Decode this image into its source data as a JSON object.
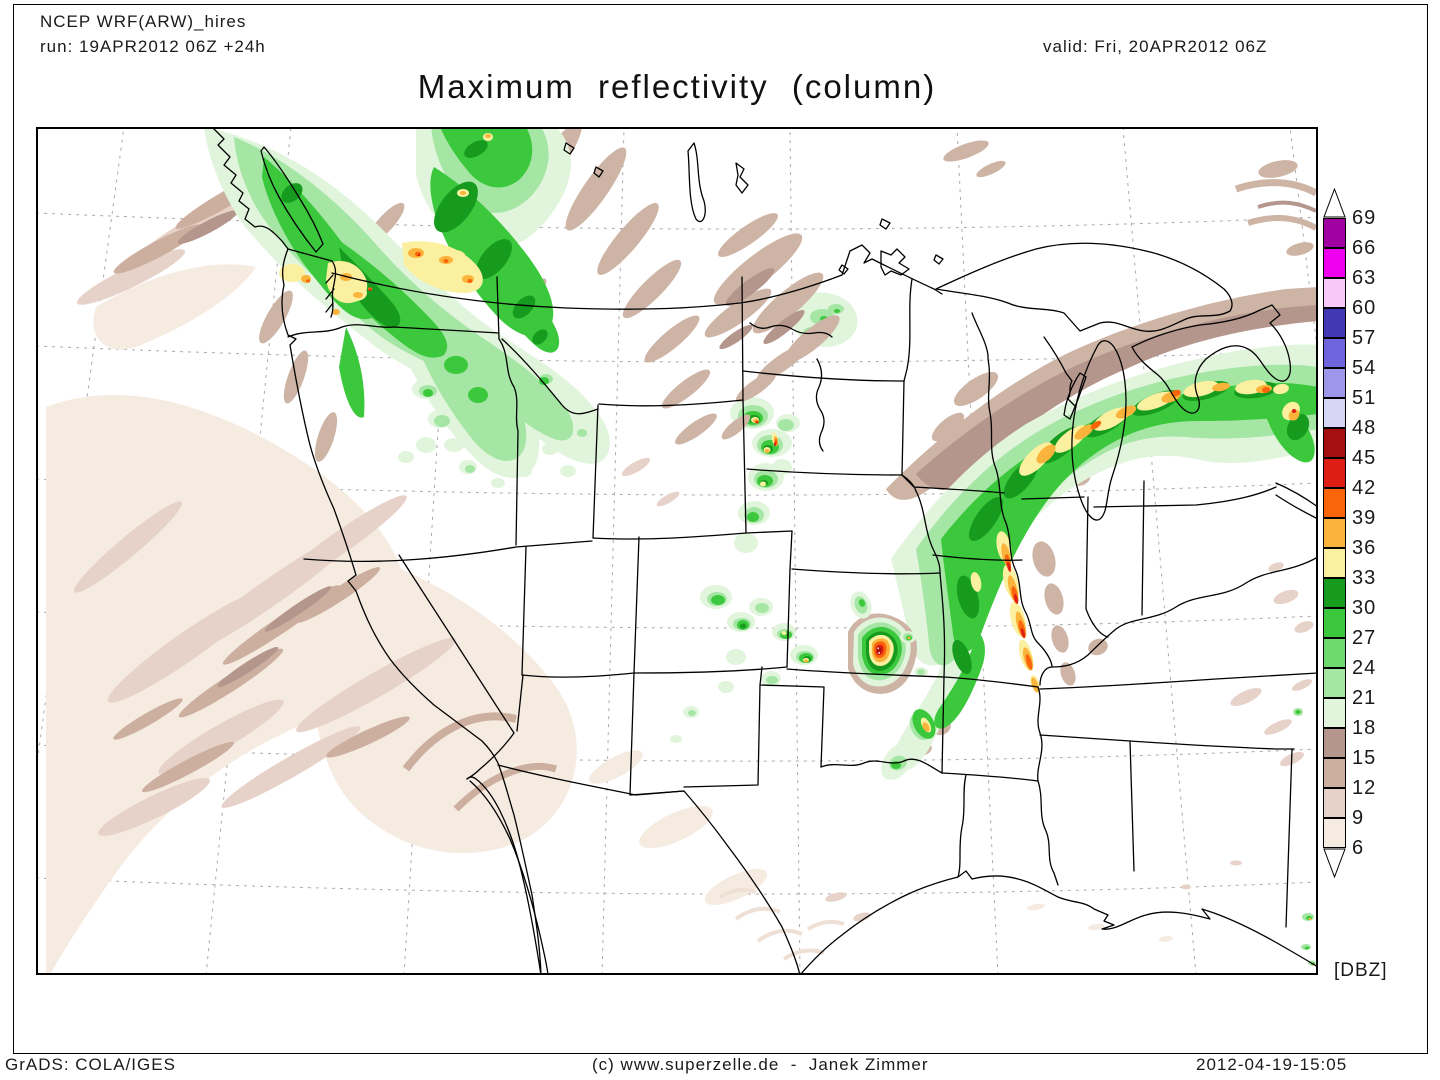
{
  "header": {
    "model": "NCEP WRF(ARW)_hires",
    "run": "run: 19APR2012 06Z +24h",
    "valid": "valid: Fri, 20APR2012 06Z"
  },
  "title": "Maximum reflectivity (column)",
  "footer": {
    "left": "GrADS: COLA/IGES",
    "center": "(c) www.superzelle.de  -  Janek Zimmer",
    "right": "2012-04-19-15:05"
  },
  "colorbar": {
    "units": "[DBZ]",
    "labels": [
      69,
      66,
      63,
      60,
      57,
      54,
      51,
      48,
      45,
      42,
      39,
      36,
      33,
      30,
      27,
      24,
      21,
      18,
      15,
      12,
      9,
      6
    ],
    "colors": [
      "#A000A0",
      "#EE00EE",
      "#F8C8F8",
      "#4238B4",
      "#6E64DC",
      "#9E96E8",
      "#D7D7F5",
      "#A50F0F",
      "#DC1E14",
      "#FA640A",
      "#FAB43C",
      "#FAF0A0",
      "#169B1E",
      "#3CC83C",
      "#6ED96E",
      "#A5E6A5",
      "#E1F5DC",
      "#B4968C",
      "#CDAFA0",
      "#E6D2C8",
      "#F5EBE1"
    ]
  },
  "chart_data": {
    "type": "map",
    "variable": "Maximum reflectivity (column)",
    "units": "DBZ",
    "level_min": 6,
    "level_max": 69,
    "level_step": 3,
    "regions": [
      {
        "area": "Pacific Northwest / British Columbia coast",
        "max_dbz": 42,
        "note": "large green rain shield, yellow-orange cores near Puget Sound and Cascades"
      },
      {
        "area": "Northeast Pacific ocean",
        "max_dbz": 15,
        "note": "tan/brown light-echo streaks southwest of the coast"
      },
      {
        "area": "Montana / North Dakota",
        "max_dbz": 27,
        "note": "brown streaks with embedded light green patches"
      },
      {
        "area": "Upper Midwest / Great Lakes",
        "max_dbz": 45,
        "note": "curved green band with yellow-orange cores from Minnesota across Wisconsin-Michigan"
      },
      {
        "area": "Eastern Iowa / Missouri squall line",
        "max_dbz": 45,
        "note": "north-south line of red-orange cores along the Mississippi valley"
      },
      {
        "area": "Western Nebraska / South Dakota",
        "max_dbz": 45,
        "note": "cluster of cells with small red cores"
      },
      {
        "area": "Colorado / Kansas",
        "max_dbz": 36,
        "note": "scattered green cells"
      },
      {
        "area": "Kansas-Oklahoma border supercell",
        "max_dbz": 48,
        "note": "isolated strong cell, dark red core with white flecks"
      },
      {
        "area": "Gulf coast / Southeast edge",
        "max_dbz": 39,
        "note": "tiny isolated specks"
      }
    ]
  }
}
